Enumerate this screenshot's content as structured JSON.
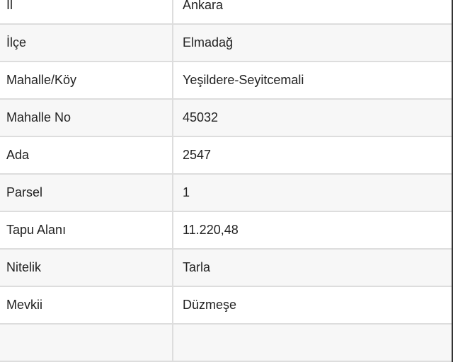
{
  "rows": [
    {
      "label": "İl",
      "value": "Ankara"
    },
    {
      "label": "İlçe",
      "value": "Elmadağ"
    },
    {
      "label": "Mahalle/Köy",
      "value": "Yeşildere-Seyitcemali"
    },
    {
      "label": "Mahalle No",
      "value": "45032"
    },
    {
      "label": "Ada",
      "value": "2547"
    },
    {
      "label": "Parsel",
      "value": "1"
    },
    {
      "label": "Tapu Alanı",
      "value": "11.220,48"
    },
    {
      "label": "Nitelik",
      "value": "Tarla"
    },
    {
      "label": "Mevkii",
      "value": "Düzmeşe"
    },
    {
      "label": "",
      "value": ""
    }
  ]
}
